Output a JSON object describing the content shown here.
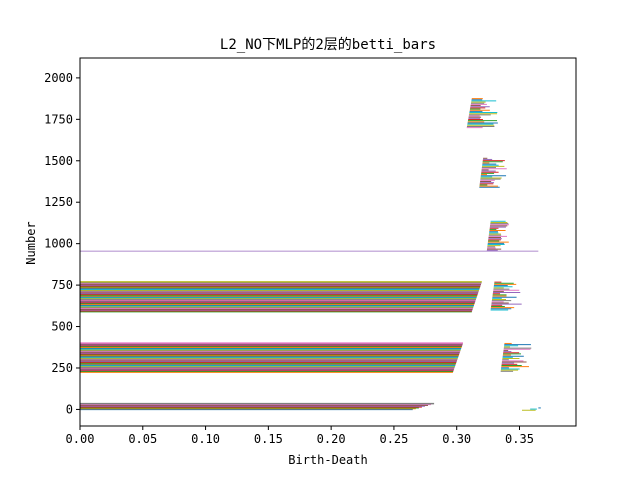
{
  "chart_data": {
    "type": "bar",
    "orientation": "horizontal",
    "title": "L2_NO下MLP的2层的betti_bars",
    "xlabel": "Birth-Death",
    "ylabel": "Number",
    "xlim": [
      0,
      0.395
    ],
    "ylim": [
      -100,
      2120
    ],
    "xticks": [
      "0.00",
      "0.05",
      "0.10",
      "0.15",
      "0.20",
      "0.25",
      "0.30",
      "0.35"
    ],
    "yticks": [
      "0",
      "250",
      "500",
      "750",
      "1000",
      "1250",
      "1500",
      "1750",
      "2000"
    ],
    "grid": false,
    "legend": false,
    "colors": [
      "#1f77b4",
      "#ff7f0e",
      "#2ca02c",
      "#d62728",
      "#9467bd",
      "#8c564b",
      "#e377c2",
      "#7f7f7f",
      "#bcbd22",
      "#17becf"
    ],
    "series": [
      {
        "bar_group": "dense",
        "y_range": [
          0,
          35
        ],
        "birth": 0,
        "death_range": [
          0.265,
          0.282
        ]
      },
      {
        "bar_group": "sparse",
        "y_range": [
          -5,
          15
        ],
        "birth_range": [
          0.352,
          0.365
        ],
        "death_range": [
          0.356,
          0.37
        ]
      },
      {
        "bar_group": "dense",
        "y_range": [
          225,
          400
        ],
        "birth": 0,
        "death_range": [
          0.297,
          0.305
        ]
      },
      {
        "bar_group": "sparse",
        "y_range": [
          230,
          400
        ],
        "birth_range": [
          0.335,
          0.338
        ],
        "death_range": [
          0.34,
          0.36
        ]
      },
      {
        "bar_group": "dense",
        "y_range": [
          590,
          770
        ],
        "birth": 0,
        "death_range": [
          0.312,
          0.32
        ]
      },
      {
        "bar_group": "sparse",
        "y_range": [
          600,
          770
        ],
        "birth_range": [
          0.327,
          0.33
        ],
        "death_range": [
          0.333,
          0.352
        ]
      },
      {
        "bar_group": "single",
        "y": 955,
        "birth": 0,
        "death": 0.365,
        "color": "#9467bd"
      },
      {
        "bar_group": "sparse",
        "y_range": [
          960,
          1140
        ],
        "birth_range": [
          0.324,
          0.327
        ],
        "death_range": [
          0.33,
          0.342
        ]
      },
      {
        "bar_group": "sparse",
        "y_range": [
          1340,
          1520
        ],
        "birth_range": [
          0.318,
          0.321
        ],
        "death_range": [
          0.324,
          0.34
        ]
      },
      {
        "bar_group": "sparse",
        "y_range": [
          1700,
          1880
        ],
        "birth_range": [
          0.308,
          0.312
        ],
        "death_range": [
          0.318,
          0.335
        ]
      }
    ]
  }
}
